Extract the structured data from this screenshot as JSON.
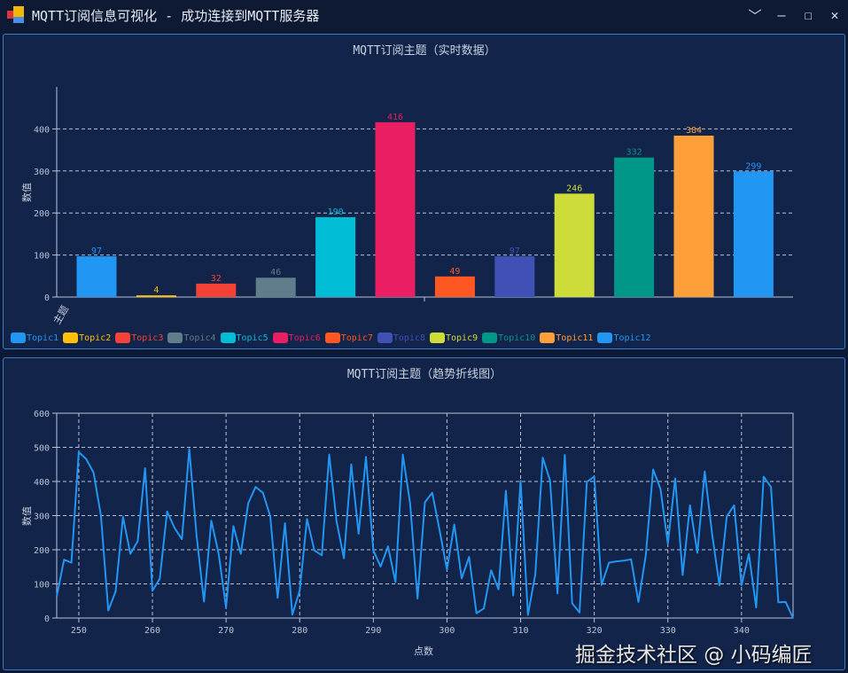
{
  "window": {
    "title": "MQTT订阅信息可视化 - 成功连接到MQTT服务器",
    "controls": {
      "dropdown": "﹀",
      "minimize": "—",
      "maximize": "☐",
      "close": "✕"
    }
  },
  "colors": {
    "accent": "#3b78c8",
    "panel_bg": "#12244a",
    "line": "#2196F3",
    "grid": "#c8d2e0"
  },
  "watermark": "掘金技术社区 @ 小码编匠",
  "chart_data": [
    {
      "type": "bar",
      "title": "MQTT订阅主题（实时数据）",
      "xlabel": "主题",
      "ylabel": "数值",
      "ylim": [
        0,
        500
      ],
      "yticks": [
        0,
        100,
        200,
        300,
        400
      ],
      "grid": "horizontal dashed",
      "legend_position": "bottom-left",
      "categories": [
        "Topic1",
        "Topic2",
        "Topic3",
        "Topic4",
        "Topic5",
        "Topic6",
        "Topic7",
        "Topic8",
        "Topic9",
        "Topic10",
        "Topic11",
        "Topic12"
      ],
      "values": [
        97,
        4,
        32,
        46,
        190,
        416,
        49,
        97,
        246,
        332,
        384,
        299
      ],
      "labels": [
        "97",
        "4",
        "32",
        "46",
        "190",
        "416",
        "49",
        "97",
        "246",
        "332",
        "384",
        "299"
      ],
      "colors": [
        "#2196F3",
        "#FFC107",
        "#F44336",
        "#607D8B",
        "#00BCD4",
        "#E91E63",
        "#FF5722",
        "#3F51B5",
        "#CDDC39",
        "#009688",
        "#FF9F3A",
        "#2196F3"
      ]
    },
    {
      "type": "line",
      "title": "MQTT订阅主题（趋势折线图）",
      "xlabel": "点数",
      "ylabel": "数值",
      "xlim": [
        247,
        347
      ],
      "ylim": [
        0,
        600
      ],
      "xticks": [
        250,
        260,
        270,
        280,
        290,
        300,
        310,
        320,
        330,
        340
      ],
      "yticks": [
        0,
        100,
        200,
        300,
        400,
        500,
        600
      ],
      "grid": "dashed",
      "color": "#2196F3",
      "x_start": 247,
      "values": [
        63,
        171,
        162,
        486,
        466,
        426,
        300,
        22,
        78,
        296,
        188,
        225,
        439,
        80,
        115,
        312,
        264,
        231,
        495,
        240,
        48,
        285,
        188,
        30,
        269,
        188,
        336,
        384,
        367,
        298,
        59,
        278,
        10,
        80,
        290,
        198,
        184,
        479,
        284,
        175,
        450,
        247,
        472,
        198,
        151,
        210,
        105,
        479,
        334,
        57,
        339,
        367,
        257,
        142,
        274,
        116,
        179,
        14,
        28,
        140,
        84,
        373,
        66,
        402,
        9,
        128,
        470,
        402,
        72,
        478,
        43,
        16,
        399,
        414,
        97,
        162,
        166,
        168,
        172,
        47,
        184,
        435,
        378,
        218,
        409,
        126,
        330,
        191,
        429,
        247,
        96,
        298,
        330,
        96,
        188,
        31,
        414,
        384,
        46,
        47,
        0
      ]
    }
  ]
}
